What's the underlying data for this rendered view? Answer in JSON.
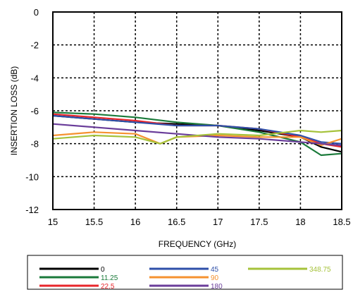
{
  "chart_data": {
    "type": "line",
    "xlabel": "FREQUENCY (GHz)",
    "ylabel": "INSERTION LOSS  (dB)",
    "xlim": [
      15,
      18.5
    ],
    "ylim": [
      -12,
      0
    ],
    "xticks": [
      "15",
      "15.5",
      "16",
      "16.5",
      "17",
      "17.5",
      "18",
      "18.5"
    ],
    "yticks": [
      "0",
      "-2",
      "-4",
      "-6",
      "-8",
      "-10",
      "-12"
    ],
    "grid": true,
    "legend_position": "bottom",
    "series": [
      {
        "name": "0",
        "color": "#000000",
        "x": [
          15,
          15.5,
          16,
          16.5,
          17,
          17.5,
          18,
          18.25,
          18.5
        ],
        "y": [
          -6.3,
          -6.5,
          -6.7,
          -6.8,
          -6.9,
          -7.2,
          -7.6,
          -8.2,
          -8.5
        ]
      },
      {
        "name": "11.25",
        "color": "#1a7a3a",
        "x": [
          15,
          15.5,
          16,
          16.5,
          17,
          17.5,
          18,
          18.25,
          18.5
        ],
        "y": [
          -6.1,
          -6.2,
          -6.4,
          -6.7,
          -6.9,
          -7.3,
          -7.9,
          -8.7,
          -8.6
        ]
      },
      {
        "name": "22.5",
        "color": "#e8262b",
        "x": [
          15,
          15.5,
          16,
          16.5,
          17,
          17.5,
          18,
          18.25,
          18.5
        ],
        "y": [
          -6.2,
          -6.4,
          -6.6,
          -6.9,
          -6.9,
          -7.1,
          -7.6,
          -8.0,
          -8.2
        ]
      },
      {
        "name": "45",
        "color": "#2e4fa8",
        "x": [
          15,
          15.5,
          16,
          16.5,
          17,
          17.5,
          18,
          18.25,
          18.5
        ],
        "y": [
          -6.3,
          -6.5,
          -6.7,
          -6.9,
          -6.9,
          -7.1,
          -7.5,
          -7.9,
          -8.0
        ]
      },
      {
        "name": "90",
        "color": "#f5922f",
        "x": [
          15,
          15.5,
          16,
          16.3,
          16.5,
          17,
          17.5,
          18,
          18.25,
          18.5
        ],
        "y": [
          -7.5,
          -7.3,
          -7.4,
          -8.0,
          -7.6,
          -7.5,
          -7.6,
          -7.6,
          -8.1,
          -7.7
        ]
      },
      {
        "name": "180",
        "color": "#6a3d9a",
        "x": [
          15,
          15.5,
          16,
          16.5,
          17,
          17.5,
          18,
          18.25,
          18.5
        ],
        "y": [
          -6.8,
          -7.0,
          -7.2,
          -7.4,
          -7.6,
          -7.7,
          -7.9,
          -8.0,
          -8.1
        ]
      },
      {
        "name": "348.75",
        "color": "#a5c23a",
        "x": [
          15,
          15.5,
          16,
          16.3,
          16.5,
          17,
          17.5,
          18,
          18.25,
          18.5
        ],
        "y": [
          -7.7,
          -7.5,
          -7.6,
          -8.0,
          -7.6,
          -7.4,
          -7.5,
          -7.2,
          -7.3,
          -7.2
        ]
      }
    ]
  }
}
